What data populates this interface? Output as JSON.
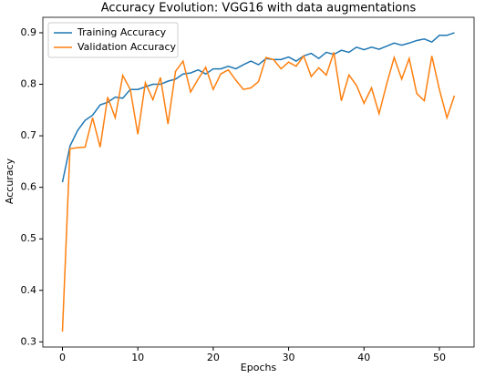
{
  "chart_data": {
    "type": "line",
    "title": "Accuracy Evolution: VGG16 with data augmentations",
    "x_label": "Epochs",
    "y_label": "Accuracy",
    "x": [
      0,
      1,
      2,
      3,
      4,
      5,
      6,
      7,
      8,
      9,
      10,
      11,
      12,
      13,
      14,
      15,
      16,
      17,
      18,
      19,
      20,
      21,
      22,
      23,
      24,
      25,
      26,
      27,
      28,
      29,
      30,
      31,
      32,
      33,
      34,
      35,
      36,
      37,
      38,
      39,
      40,
      41,
      42,
      43,
      44,
      45,
      46,
      47,
      48,
      49,
      50,
      51,
      52
    ],
    "series": [
      {
        "name": "Training Accuracy",
        "color": "#1f77b4",
        "values": [
          0.61,
          0.68,
          0.71,
          0.73,
          0.74,
          0.76,
          0.765,
          0.775,
          0.773,
          0.79,
          0.79,
          0.795,
          0.8,
          0.8,
          0.806,
          0.81,
          0.82,
          0.822,
          0.828,
          0.82,
          0.83,
          0.83,
          0.835,
          0.83,
          0.838,
          0.845,
          0.838,
          0.85,
          0.848,
          0.848,
          0.853,
          0.845,
          0.855,
          0.86,
          0.85,
          0.862,
          0.858,
          0.866,
          0.862,
          0.872,
          0.867,
          0.872,
          0.868,
          0.874,
          0.88,
          0.876,
          0.88,
          0.885,
          0.888,
          0.882,
          0.895,
          0.895,
          0.9
        ]
      },
      {
        "name": "Validation Accuracy",
        "color": "#ff7f0e",
        "values": [
          0.32,
          0.675,
          0.677,
          0.678,
          0.735,
          0.678,
          0.775,
          0.735,
          0.817,
          0.79,
          0.703,
          0.803,
          0.77,
          0.813,
          0.723,
          0.825,
          0.845,
          0.785,
          0.81,
          0.833,
          0.79,
          0.82,
          0.828,
          0.808,
          0.79,
          0.793,
          0.805,
          0.852,
          0.848,
          0.83,
          0.843,
          0.835,
          0.855,
          0.815,
          0.832,
          0.818,
          0.862,
          0.768,
          0.818,
          0.798,
          0.763,
          0.793,
          0.743,
          0.8,
          0.852,
          0.81,
          0.85,
          0.782,
          0.768,
          0.855,
          0.79,
          0.735,
          0.778
        ]
      }
    ],
    "xlim": [
      -2.6,
      54.6
    ],
    "xticks": [
      0,
      10,
      20,
      30,
      40,
      50
    ],
    "ylim": [
      0.29,
      0.93
    ],
    "yticks": [
      0.3,
      0.4,
      0.5,
      0.6,
      0.7,
      0.8,
      0.9
    ],
    "legend": "upper left"
  }
}
